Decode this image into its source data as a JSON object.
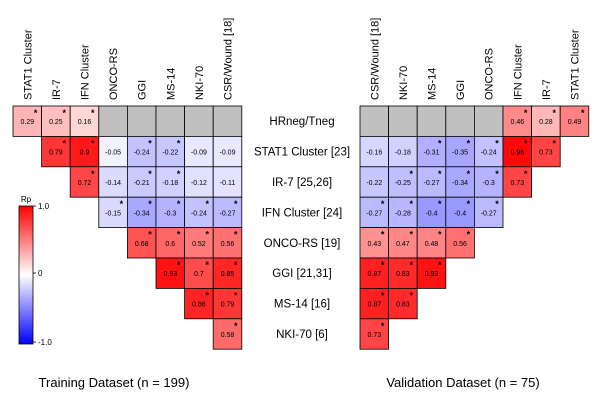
{
  "chart_data": {
    "type": "heatmap",
    "row_labels": [
      "HRneg/Tneg",
      "STAT1 Cluster [23]",
      "IR-7 [25,26]",
      "IFN Cluster [24]",
      "ONCO-RS [19]",
      "GGI [21,31]",
      "MS-14 [16]",
      "NKI-70 [6]"
    ],
    "legend": {
      "title": "Rp",
      "max_label": "1.0",
      "mid_label": "0",
      "min_label": "-1.0",
      "min": -1.0,
      "max": 1.0
    },
    "colors": {
      "positive": "#ff0000",
      "neutral": "#ffffff",
      "negative": "#0000ff",
      "gray_cell": "#c0c0c0"
    },
    "panels": [
      {
        "title": "Training Dataset (n = 199)",
        "columns": [
          "STAT1 Cluster",
          "IR-7",
          "IFN Cluster",
          "ONCO-RS",
          "GGI",
          "MS-14",
          "NKI-70",
          "CSR/Wound [18]"
        ],
        "rows": [
          [
            {
              "v": 0.29,
              "t": "0.29",
              "s": true
            },
            {
              "v": 0.25,
              "t": "0.25",
              "s": true
            },
            {
              "v": 0.16,
              "t": "0.16",
              "s": true
            },
            {
              "g": true
            },
            {
              "g": true
            },
            {
              "g": true
            },
            {
              "g": true
            },
            {
              "g": true
            }
          ],
          [
            null,
            {
              "v": 0.79,
              "t": "0.79",
              "s": true
            },
            {
              "v": 0.9,
              "t": "0.9",
              "s": true
            },
            {
              "v": -0.05,
              "t": "-0.05",
              "s": false
            },
            {
              "v": -0.24,
              "t": "-0.24",
              "s": true
            },
            {
              "v": -0.22,
              "t": "-0.22",
              "s": true
            },
            {
              "v": -0.09,
              "t": "-0.09",
              "s": false
            },
            {
              "v": -0.09,
              "t": "-0.09",
              "s": false
            }
          ],
          [
            null,
            null,
            {
              "v": 0.72,
              "t": "0.72",
              "s": true
            },
            {
              "v": -0.14,
              "t": "-0.14",
              "s": false
            },
            {
              "v": -0.21,
              "t": "-0.21",
              "s": true
            },
            {
              "v": -0.18,
              "t": "-0.18",
              "s": true
            },
            {
              "v": -0.12,
              "t": "-0.12",
              "s": false
            },
            {
              "v": -0.11,
              "t": "-0.11",
              "s": false
            }
          ],
          [
            null,
            null,
            null,
            {
              "v": -0.15,
              "t": "-0.15",
              "s": true
            },
            {
              "v": -0.34,
              "t": "-0.34",
              "s": true
            },
            {
              "v": -0.3,
              "t": "-0.3",
              "s": true
            },
            {
              "v": -0.24,
              "t": "-0.24",
              "s": true
            },
            {
              "v": -0.27,
              "t": "-0.27",
              "s": true
            }
          ],
          [
            null,
            null,
            null,
            null,
            {
              "v": 0.68,
              "t": "0.68",
              "s": true
            },
            {
              "v": 0.6,
              "t": "0.6",
              "s": true
            },
            {
              "v": 0.52,
              "t": "0.52",
              "s": true
            },
            {
              "v": 0.56,
              "t": "0.56",
              "s": true
            }
          ],
          [
            null,
            null,
            null,
            null,
            null,
            {
              "v": 0.93,
              "t": "0.93",
              "s": true
            },
            {
              "v": 0.7,
              "t": "0.7",
              "s": true
            },
            {
              "v": 0.85,
              "t": "0.85",
              "s": true
            }
          ],
          [
            null,
            null,
            null,
            null,
            null,
            null,
            {
              "v": 0.86,
              "t": "0.86",
              "s": true
            },
            {
              "v": 0.79,
              "t": "0.79",
              "s": true
            }
          ],
          [
            null,
            null,
            null,
            null,
            null,
            null,
            null,
            {
              "v": 0.58,
              "t": "0.58",
              "s": true
            }
          ]
        ]
      },
      {
        "title": "Validation Dataset (n = 75)",
        "columns": [
          "CSR/Wound [18]",
          "NKI-70",
          "MS-14",
          "GGI",
          "ONCO-RS",
          "IFN Cluster",
          "IR-7",
          "STAT1 Cluster"
        ],
        "rows": [
          [
            {
              "g": true
            },
            {
              "g": true
            },
            {
              "g": true
            },
            {
              "g": true
            },
            {
              "g": true
            },
            {
              "v": 0.46,
              "t": "0.46",
              "s": true
            },
            {
              "v": 0.28,
              "t": "0.28",
              "s": true
            },
            {
              "v": 0.49,
              "t": "0.49",
              "s": true
            }
          ],
          [
            {
              "v": -0.16,
              "t": "-0.16",
              "s": false
            },
            {
              "v": -0.18,
              "t": "-0.18",
              "s": false
            },
            {
              "v": -0.31,
              "t": "-0.31",
              "s": true
            },
            {
              "v": -0.35,
              "t": "-0.35",
              "s": true
            },
            {
              "v": -0.24,
              "t": "-0.24",
              "s": true
            },
            {
              "v": 0.96,
              "t": "0.96",
              "s": true
            },
            {
              "v": 0.73,
              "t": "0.73",
              "s": true
            },
            null
          ],
          [
            {
              "v": -0.22,
              "t": "-0.22",
              "s": false
            },
            {
              "v": -0.25,
              "t": "-0.25",
              "s": true
            },
            {
              "v": -0.27,
              "t": "-0.27",
              "s": true
            },
            {
              "v": -0.34,
              "t": "-0.34",
              "s": true
            },
            {
              "v": -0.3,
              "t": "-0.3",
              "s": true
            },
            {
              "v": 0.73,
              "t": "0.73",
              "s": true
            },
            null,
            null
          ],
          [
            {
              "v": -0.27,
              "t": "-0.27",
              "s": true
            },
            {
              "v": -0.28,
              "t": "-0.28",
              "s": true
            },
            {
              "v": -0.4,
              "t": "-0.4",
              "s": true
            },
            {
              "v": -0.4,
              "t": "-0.4",
              "s": true
            },
            {
              "v": -0.27,
              "t": "-0.27",
              "s": true
            },
            null,
            null,
            null
          ],
          [
            {
              "v": 0.43,
              "t": "0.43",
              "s": true
            },
            {
              "v": 0.47,
              "t": "0.47",
              "s": true
            },
            {
              "v": 0.48,
              "t": "0.48",
              "s": true
            },
            {
              "v": 0.56,
              "t": "0.56",
              "s": true
            },
            null,
            null,
            null,
            null
          ],
          [
            {
              "v": 0.87,
              "t": "0.87",
              "s": true
            },
            {
              "v": 0.83,
              "t": "0.83",
              "s": true
            },
            {
              "v": 0.93,
              "t": "0.93",
              "s": true
            },
            null,
            null,
            null,
            null,
            null
          ],
          [
            {
              "v": 0.87,
              "t": "0.87",
              "s": true
            },
            {
              "v": 0.83,
              "t": "0.83",
              "s": true
            },
            null,
            null,
            null,
            null,
            null,
            null
          ],
          [
            {
              "v": 0.73,
              "t": "0.73",
              "s": true
            },
            null,
            null,
            null,
            null,
            null,
            null,
            null
          ]
        ]
      }
    ]
  }
}
